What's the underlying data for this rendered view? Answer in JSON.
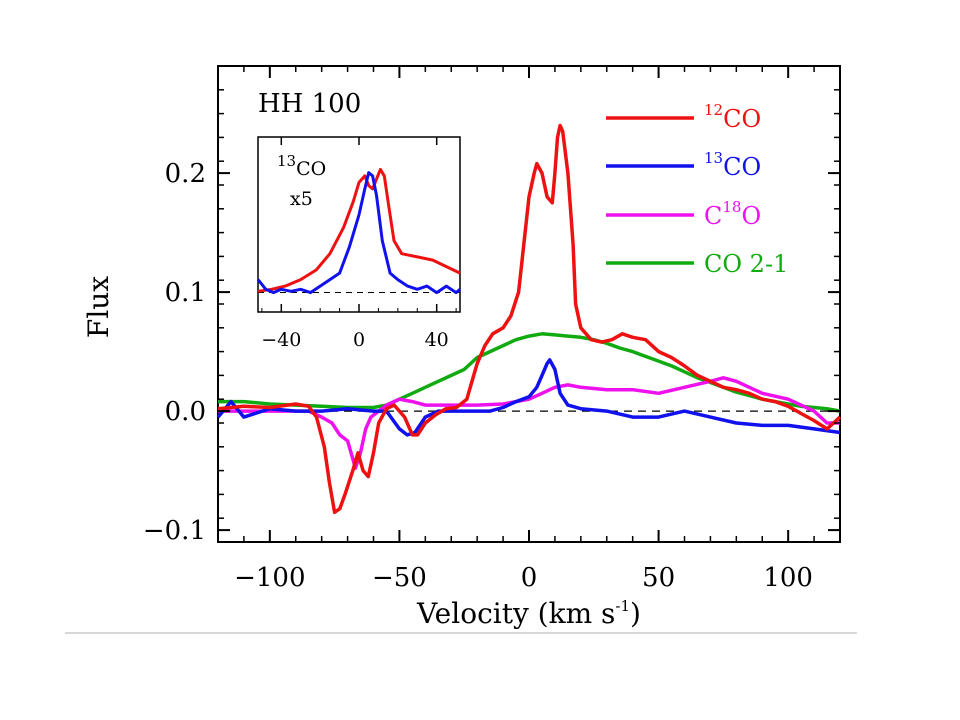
{
  "chart_data": {
    "type": "line",
    "annotation": "HH 100",
    "xlabel": {
      "main": "Velocity (km s",
      "sup": "-1",
      "close": ")"
    },
    "ylabel": "Flux",
    "xlim": [
      -120,
      120
    ],
    "ylim": [
      -0.11,
      0.29
    ],
    "xticks": [
      "-100",
      "-50",
      "0",
      "50",
      "100"
    ],
    "xtick_values": [
      -100,
      -50,
      0,
      50,
      100
    ],
    "yticks": [
      "-0.1",
      "0.0",
      "0.1",
      "0.2"
    ],
    "ytick_values": [
      -0.1,
      0.0,
      0.1,
      0.2
    ],
    "zero_line": 0.0,
    "series": [
      {
        "name": "12CO",
        "legend": {
          "sup": "12",
          "main": "CO"
        },
        "color": "#ee1111",
        "points": [
          [
            -120,
            0.002
          ],
          [
            -110,
            0.004
          ],
          [
            -100,
            0.003
          ],
          [
            -90,
            0.006
          ],
          [
            -85,
            0.004
          ],
          [
            -82,
            -0.005
          ],
          [
            -79,
            -0.03
          ],
          [
            -77,
            -0.06
          ],
          [
            -75,
            -0.085
          ],
          [
            -73,
            -0.082
          ],
          [
            -71,
            -0.07
          ],
          [
            -68,
            -0.05
          ],
          [
            -66,
            -0.035
          ],
          [
            -64,
            -0.05
          ],
          [
            -62,
            -0.055
          ],
          [
            -60,
            -0.035
          ],
          [
            -58,
            -0.01
          ],
          [
            -55,
            0.002
          ],
          [
            -52,
            0.005
          ],
          [
            -48,
            -0.005
          ],
          [
            -45,
            -0.02
          ],
          [
            -43,
            -0.02
          ],
          [
            -40,
            -0.01
          ],
          [
            -36,
            -0.003
          ],
          [
            -32,
            0.002
          ],
          [
            -28,
            0.003
          ],
          [
            -24,
            0.01
          ],
          [
            -22,
            0.025
          ],
          [
            -20,
            0.04
          ],
          [
            -17,
            0.055
          ],
          [
            -14,
            0.065
          ],
          [
            -10,
            0.07
          ],
          [
            -7,
            0.08
          ],
          [
            -4,
            0.1
          ],
          [
            -2,
            0.14
          ],
          [
            0,
            0.18
          ],
          [
            2,
            0.2
          ],
          [
            3,
            0.208
          ],
          [
            5,
            0.2
          ],
          [
            7,
            0.18
          ],
          [
            9,
            0.175
          ],
          [
            10,
            0.2
          ],
          [
            11,
            0.23
          ],
          [
            12,
            0.24
          ],
          [
            13,
            0.235
          ],
          [
            15,
            0.2
          ],
          [
            17,
            0.14
          ],
          [
            18,
            0.09
          ],
          [
            20,
            0.07
          ],
          [
            24,
            0.06
          ],
          [
            28,
            0.058
          ],
          [
            32,
            0.06
          ],
          [
            36,
            0.065
          ],
          [
            40,
            0.062
          ],
          [
            45,
            0.06
          ],
          [
            50,
            0.05
          ],
          [
            55,
            0.045
          ],
          [
            60,
            0.038
          ],
          [
            65,
            0.03
          ],
          [
            70,
            0.025
          ],
          [
            75,
            0.02
          ],
          [
            80,
            0.018
          ],
          [
            85,
            0.015
          ],
          [
            90,
            0.01
          ],
          [
            95,
            0.008
          ],
          [
            100,
            0.004
          ],
          [
            105,
            -0.002
          ],
          [
            110,
            -0.008
          ],
          [
            115,
            -0.015
          ],
          [
            120,
            -0.005
          ]
        ]
      },
      {
        "name": "13CO",
        "legend": {
          "sup": "13",
          "main": "CO"
        },
        "color": "#1111ee",
        "points": [
          [
            -120,
            -0.005
          ],
          [
            -115,
            0.008
          ],
          [
            -110,
            -0.005
          ],
          [
            -100,
            0.002
          ],
          [
            -90,
            0.0
          ],
          [
            -80,
            0.0
          ],
          [
            -70,
            0.002
          ],
          [
            -60,
            0.0
          ],
          [
            -55,
            0.0
          ],
          [
            -50,
            -0.015
          ],
          [
            -47,
            -0.02
          ],
          [
            -44,
            -0.018
          ],
          [
            -40,
            -0.005
          ],
          [
            -35,
            0.0
          ],
          [
            -30,
            0.0
          ],
          [
            -20,
            0.0
          ],
          [
            -15,
            0.0
          ],
          [
            -10,
            0.003
          ],
          [
            -5,
            0.008
          ],
          [
            0,
            0.012
          ],
          [
            3,
            0.02
          ],
          [
            5,
            0.03
          ],
          [
            7,
            0.04
          ],
          [
            8,
            0.043
          ],
          [
            10,
            0.035
          ],
          [
            12,
            0.015
          ],
          [
            15,
            0.005
          ],
          [
            20,
            0.002
          ],
          [
            30,
            0.0
          ],
          [
            40,
            -0.005
          ],
          [
            50,
            -0.005
          ],
          [
            60,
            0.0
          ],
          [
            70,
            -0.005
          ],
          [
            80,
            -0.01
          ],
          [
            90,
            -0.012
          ],
          [
            100,
            -0.012
          ],
          [
            110,
            -0.015
          ],
          [
            120,
            -0.018
          ]
        ]
      },
      {
        "name": "C18O",
        "legend": {
          "main": "C",
          "sup": "18",
          "main2": "O"
        },
        "color": "#ee11ee",
        "points": [
          [
            -120,
            0.0
          ],
          [
            -100,
            0.0
          ],
          [
            -85,
            0.0
          ],
          [
            -80,
            -0.005
          ],
          [
            -76,
            -0.01
          ],
          [
            -73,
            -0.02
          ],
          [
            -70,
            -0.025
          ],
          [
            -68,
            -0.04
          ],
          [
            -67,
            -0.048
          ],
          [
            -65,
            -0.035
          ],
          [
            -63,
            -0.015
          ],
          [
            -61,
            -0.005
          ],
          [
            -58,
            0.0
          ],
          [
            -55,
            0.005
          ],
          [
            -50,
            0.01
          ],
          [
            -45,
            0.008
          ],
          [
            -40,
            0.005
          ],
          [
            -30,
            0.005
          ],
          [
            -20,
            0.005
          ],
          [
            -10,
            0.006
          ],
          [
            -5,
            0.008
          ],
          [
            0,
            0.01
          ],
          [
            5,
            0.015
          ],
          [
            10,
            0.02
          ],
          [
            15,
            0.022
          ],
          [
            20,
            0.02
          ],
          [
            30,
            0.018
          ],
          [
            40,
            0.018
          ],
          [
            50,
            0.015
          ],
          [
            60,
            0.02
          ],
          [
            70,
            0.025
          ],
          [
            75,
            0.028
          ],
          [
            80,
            0.025
          ],
          [
            85,
            0.02
          ],
          [
            90,
            0.015
          ],
          [
            100,
            0.01
          ],
          [
            110,
            0.0
          ],
          [
            115,
            -0.01
          ],
          [
            120,
            -0.01
          ]
        ]
      },
      {
        "name": "CO 2-1",
        "legend": {
          "main": "CO 2-1"
        },
        "color": "#11aa11",
        "points": [
          [
            -120,
            0.008
          ],
          [
            -110,
            0.008
          ],
          [
            -100,
            0.006
          ],
          [
            -90,
            0.005
          ],
          [
            -80,
            0.004
          ],
          [
            -70,
            0.003
          ],
          [
            -60,
            0.003
          ],
          [
            -55,
            0.005
          ],
          [
            -50,
            0.01
          ],
          [
            -45,
            0.015
          ],
          [
            -40,
            0.02
          ],
          [
            -35,
            0.025
          ],
          [
            -30,
            0.03
          ],
          [
            -25,
            0.035
          ],
          [
            -20,
            0.045
          ],
          [
            -15,
            0.05
          ],
          [
            -10,
            0.055
          ],
          [
            -5,
            0.06
          ],
          [
            0,
            0.063
          ],
          [
            5,
            0.065
          ],
          [
            10,
            0.064
          ],
          [
            15,
            0.063
          ],
          [
            20,
            0.062
          ],
          [
            25,
            0.06
          ],
          [
            30,
            0.057
          ],
          [
            35,
            0.053
          ],
          [
            40,
            0.05
          ],
          [
            45,
            0.046
          ],
          [
            50,
            0.042
          ],
          [
            55,
            0.038
          ],
          [
            60,
            0.033
          ],
          [
            65,
            0.028
          ],
          [
            70,
            0.024
          ],
          [
            75,
            0.02
          ],
          [
            80,
            0.016
          ],
          [
            85,
            0.013
          ],
          [
            90,
            0.01
          ],
          [
            95,
            0.008
          ],
          [
            100,
            0.006
          ],
          [
            105,
            0.004
          ],
          [
            110,
            0.003
          ],
          [
            115,
            0.002
          ],
          [
            120,
            0.0
          ]
        ]
      }
    ],
    "inset": {
      "label": {
        "sup": "13",
        "main": "CO",
        "line2": "x5"
      },
      "xlim": [
        -52,
        52
      ],
      "ylim": [
        -0.03,
        0.24
      ],
      "xticks": [
        "-40",
        "0",
        "40"
      ],
      "xtick_values": [
        -40,
        0,
        40
      ],
      "zero_line": 0.0,
      "series": [
        {
          "name": "12CO",
          "color": "#ee1111",
          "points": [
            [
              -52,
              0.002
            ],
            [
              -45,
              0.005
            ],
            [
              -38,
              0.01
            ],
            [
              -30,
              0.02
            ],
            [
              -22,
              0.035
            ],
            [
              -15,
              0.06
            ],
            [
              -8,
              0.1
            ],
            [
              -3,
              0.14
            ],
            [
              0,
              0.17
            ],
            [
              3,
              0.18
            ],
            [
              5,
              0.165
            ],
            [
              7,
              0.16
            ],
            [
              9,
              0.175
            ],
            [
              11,
              0.19
            ],
            [
              13,
              0.18
            ],
            [
              15,
              0.14
            ],
            [
              18,
              0.08
            ],
            [
              22,
              0.06
            ],
            [
              30,
              0.055
            ],
            [
              38,
              0.05
            ],
            [
              45,
              0.04
            ],
            [
              52,
              0.03
            ]
          ]
        },
        {
          "name": "13CO x5",
          "color": "#1111ee",
          "points": [
            [
              -52,
              0.02
            ],
            [
              -48,
              0.005
            ],
            [
              -44,
              0.0
            ],
            [
              -40,
              0.005
            ],
            [
              -35,
              0.002
            ],
            [
              -30,
              0.005
            ],
            [
              -25,
              0.0
            ],
            [
              -20,
              0.01
            ],
            [
              -15,
              0.02
            ],
            [
              -10,
              0.03
            ],
            [
              -5,
              0.07
            ],
            [
              0,
              0.12
            ],
            [
              3,
              0.16
            ],
            [
              5,
              0.185
            ],
            [
              7,
              0.18
            ],
            [
              9,
              0.15
            ],
            [
              12,
              0.08
            ],
            [
              16,
              0.03
            ],
            [
              20,
              0.02
            ],
            [
              25,
              0.01
            ],
            [
              30,
              0.005
            ],
            [
              35,
              0.01
            ],
            [
              40,
              0.0
            ],
            [
              45,
              0.01
            ],
            [
              50,
              0.0
            ],
            [
              52,
              0.005
            ]
          ]
        }
      ]
    }
  }
}
